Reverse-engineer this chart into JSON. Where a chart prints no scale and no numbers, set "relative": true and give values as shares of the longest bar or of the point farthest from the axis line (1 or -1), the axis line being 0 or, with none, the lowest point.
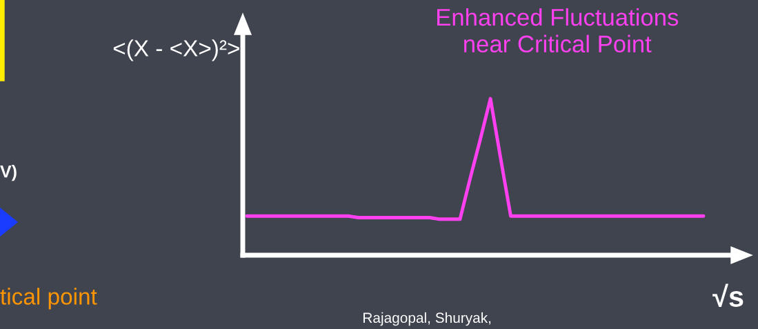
{
  "chart_data": {
    "type": "line",
    "relative": true,
    "categories": [
      null,
      null,
      null,
      null,
      null,
      null,
      null,
      null,
      null,
      null,
      null,
      null,
      null,
      null,
      null,
      null,
      null,
      null,
      null,
      null,
      null,
      null,
      null,
      null,
      null,
      null,
      null,
      null,
      null,
      null,
      null,
      null,
      null,
      null,
      null,
      null,
      null,
      null,
      null,
      null,
      null,
      null,
      null,
      null,
      null,
      null
    ],
    "series": [
      {
        "color": "#ff40f0",
        "values": [
          0.25,
          0.25,
          0.25,
          0.25,
          0.25,
          0.25,
          0.25,
          0.25,
          0.25,
          0.25,
          0.25,
          0.24,
          0.24,
          0.24,
          0.24,
          0.24,
          0.24,
          0.24,
          0.24,
          0.23,
          0.23,
          0.23,
          0.49,
          0.74,
          1.0,
          0.62,
          0.25,
          0.25,
          0.25,
          0.25,
          0.25,
          0.25,
          0.25,
          0.25,
          0.25,
          0.25,
          0.25,
          0.25,
          0.25,
          0.25,
          0.25,
          0.25,
          0.25,
          0.25,
          0.25,
          0.25
        ]
      }
    ],
    "ylabel": "<(X - <X>)²>",
    "xlabel": "√s",
    "marker": "none",
    "line_style": "solid",
    "grid": false,
    "legend": false,
    "annotations": [
      "Enhanced Fluctuations\nnear Critical Point",
      "Rajagopal, Shuryak,",
      "tical point",
      "V)"
    ]
  }
}
